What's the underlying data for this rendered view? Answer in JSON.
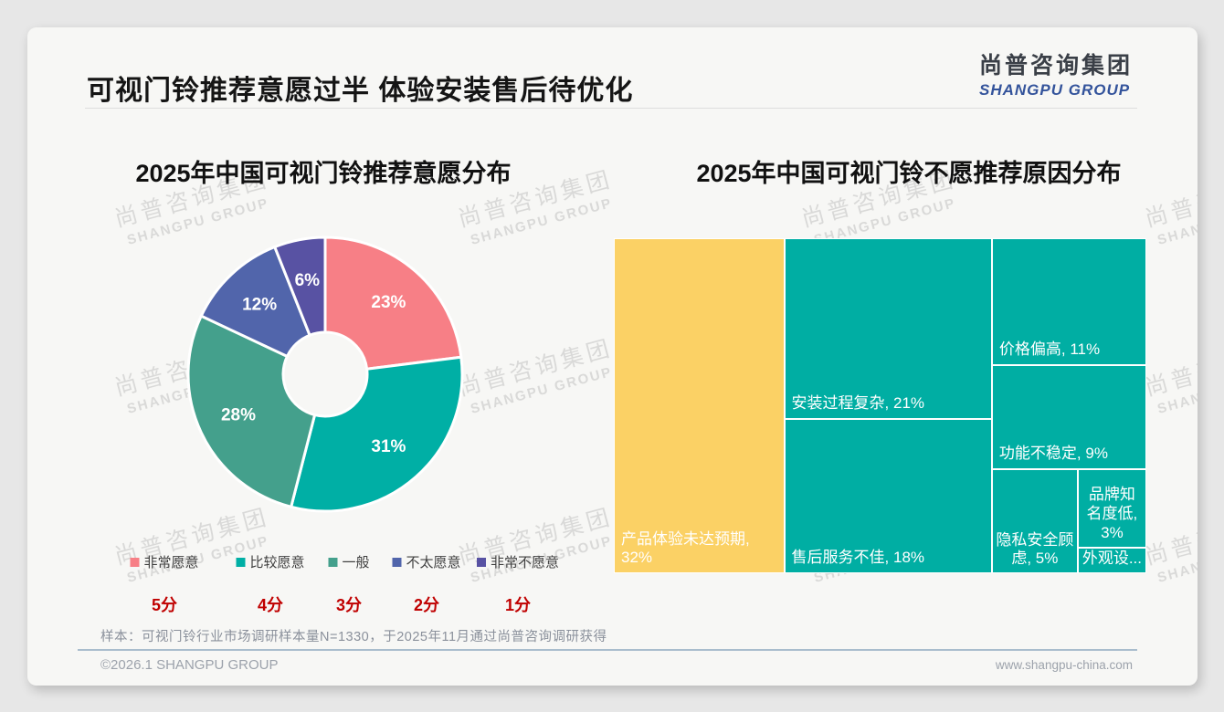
{
  "page": {
    "title": "可视门铃推荐意愿过半 体验安装售后待优化",
    "logo": {
      "cn": "尚普咨询集团",
      "en": "SHANGPU GROUP"
    },
    "watermark": {
      "cn": "尚普咨询集团",
      "en": "SHANGPU GROUP"
    },
    "footer": {
      "note": "样本：可视门铃行业市场调研样本量N=1330，于2025年11月通过尚普咨询调研获得",
      "copyright": "©2026.1 SHANGPU GROUP",
      "website": "www.shangpu-china.com"
    }
  },
  "colors": {
    "slide_bg": "#f7f7f5",
    "page_bg": "#e7e7e7",
    "score_red": "#c00000",
    "treemap_yellow": "#fbd165",
    "treemap_teal": "#00aea3",
    "logo_blue": "#33539b"
  },
  "chart_data": [
    {
      "type": "pie",
      "donut": true,
      "title": "2025年中国可视门铃推荐意愿分布",
      "labels": [
        "非常愿意",
        "比较愿意",
        "一般",
        "不太愿意",
        "非常不愿意"
      ],
      "values": [
        23,
        31,
        28,
        12,
        6
      ],
      "unit": "%",
      "data_labels": [
        "23%",
        "31%",
        "28%",
        "12%",
        "6%"
      ],
      "scores": [
        "5分",
        "4分",
        "3分",
        "2分",
        "1分"
      ],
      "colors": [
        "#f77f86",
        "#00afa5",
        "#44a08c",
        "#5165ab",
        "#5852a3"
      ],
      "start_angle": "top",
      "direction": "clockwise",
      "legend_position": "bottom"
    },
    {
      "type": "treemap",
      "title": "2025年中国可视门铃不愿推荐原因分布",
      "categories": [
        "产品体验未达预期",
        "安装过程复杂",
        "售后服务不佳",
        "价格偏高",
        "功能不稳定",
        "隐私安全顾虑",
        "品牌知名度低",
        "外观设计"
      ],
      "values": [
        32,
        21,
        18,
        11,
        9,
        5,
        3,
        1
      ],
      "unit": "%",
      "root": {
        "dir": "row",
        "children": [
          {
            "label": "产品体验未达预期",
            "text": "产品体验未达预期, 32%",
            "value": 32,
            "color": "#fbd165",
            "align": "left"
          },
          {
            "dir": "col",
            "children": [
              {
                "label": "安装过程复杂",
                "text": "安装过程复杂, 21%",
                "value": 21,
                "color": "#00aea3",
                "align": "left"
              },
              {
                "label": "售后服务不佳",
                "text": "售后服务不佳, 18%",
                "value": 18,
                "color": "#00aea3",
                "align": "left"
              }
            ]
          },
          {
            "dir": "col",
            "children": [
              {
                "label": "价格偏高",
                "text": "价格偏高, 11%",
                "value": 11,
                "color": "#00aea3",
                "align": "left"
              },
              {
                "label": "功能不稳定",
                "text": "功能不稳定, 9%",
                "value": 9,
                "color": "#00aea3",
                "align": "left"
              },
              {
                "dir": "row",
                "children": [
                  {
                    "label": "隐私安全顾虑",
                    "text": "隐私安全顾虑, 5%",
                    "value": 5,
                    "color": "#00aea3",
                    "align": "center"
                  },
                  {
                    "dir": "col",
                    "children": [
                      {
                        "label": "品牌知名度低",
                        "text": "品牌知名度低, 3%",
                        "value": 3,
                        "color": "#00aea3",
                        "align": "center"
                      },
                      {
                        "label": "外观设计",
                        "text": "外观设...",
                        "value": 1,
                        "color": "#00aea3",
                        "align": "center"
                      }
                    ]
                  }
                ]
              }
            ]
          }
        ]
      }
    }
  ]
}
